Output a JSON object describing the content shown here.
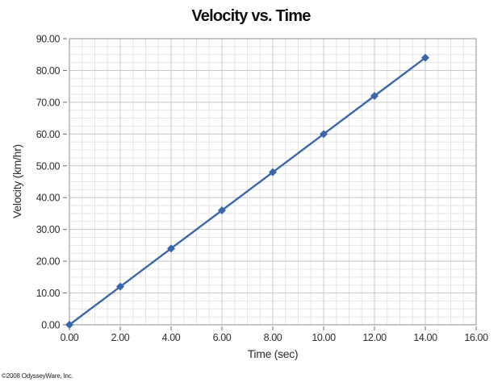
{
  "page": {
    "copyright": "©2008 OdysseyWare, Inc."
  },
  "chart_data": {
    "type": "line",
    "title": "Velocity vs. Time",
    "xlabel": "Time (sec)",
    "ylabel": "Velocity (km/hr)",
    "x": [
      0,
      2,
      4,
      6,
      8,
      10,
      12,
      14
    ],
    "y": [
      0,
      12,
      24,
      36,
      48,
      60,
      72,
      84
    ],
    "xlim": [
      0,
      16
    ],
    "ylim": [
      0,
      90
    ],
    "x_major_step": 2,
    "y_major_step": 10,
    "x_minor_step": 0.5,
    "y_minor_step": 2.5,
    "x_tick_labels": [
      "0.00",
      "2.00",
      "4.00",
      "6.00",
      "8.00",
      "10.00",
      "12.00",
      "14.00",
      "16.00"
    ],
    "y_tick_labels": [
      "0.00",
      "10.00",
      "20.00",
      "30.00",
      "40.00",
      "50.00",
      "60.00",
      "70.00",
      "80.00",
      "90.00"
    ],
    "grid": "major+minor",
    "legend": "none",
    "marker": "diamond",
    "line_color": "#3a67ac",
    "marker_color": "#3a67ac",
    "minor_grid_color": "#e5e5e5",
    "major_grid_color": "#cbcbcb",
    "plot_border_color": "#8f8f8f",
    "tick_color": "#6e6e6e",
    "label_color": "#2d2d2d",
    "title_color": "#111111",
    "plot_bg_color": "#ffffff"
  }
}
